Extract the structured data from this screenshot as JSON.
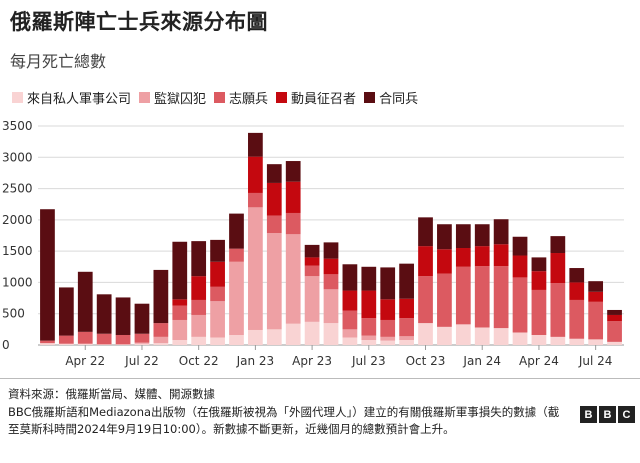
{
  "title": "俄羅斯陣亡士兵來源分布圖",
  "subtitle": "每月死亡總數",
  "legend": [
    {
      "name": "來自私人軍事公司",
      "color": "#f9d3d3"
    },
    {
      "name": "監獄囚犯",
      "color": "#eea0a4"
    },
    {
      "name": "志願兵",
      "color": "#dc5a61"
    },
    {
      "name": "動員征召者",
      "color": "#c4080f"
    },
    {
      "name": "合同兵",
      "color": "#5a0d12"
    }
  ],
  "chart_data": {
    "type": "bar",
    "stacked": true,
    "grid": true,
    "ylim": [
      0,
      3500
    ],
    "yticks": [
      0,
      500,
      1000,
      1500,
      2000,
      2500,
      3000,
      3500
    ],
    "categories": [
      "2022-02",
      "2022-03",
      "2022-04",
      "2022-05",
      "2022-06",
      "2022-07",
      "2022-08",
      "2022-09",
      "2022-10",
      "2022-11",
      "2022-12",
      "2023-01",
      "2023-02",
      "2023-03",
      "2023-04",
      "2023-05",
      "2023-06",
      "2023-07",
      "2023-08",
      "2023-09",
      "2023-10",
      "2023-11",
      "2023-12",
      "2024-01",
      "2024-02",
      "2024-03",
      "2024-04",
      "2024-05",
      "2024-06",
      "2024-07",
      "2024-08"
    ],
    "xtick_labels": [
      {
        "index": 2,
        "label": "Apr 22"
      },
      {
        "index": 5,
        "label": "Jul 22"
      },
      {
        "index": 8,
        "label": "Oct 22"
      },
      {
        "index": 11,
        "label": "Jan 23"
      },
      {
        "index": 14,
        "label": "Apr 23"
      },
      {
        "index": 17,
        "label": "Jul 23"
      },
      {
        "index": 20,
        "label": "Oct 23"
      },
      {
        "index": 23,
        "label": "Jan 24"
      },
      {
        "index": 26,
        "label": "Apr 24"
      },
      {
        "index": 29,
        "label": "Jul 24"
      }
    ],
    "series": [
      {
        "name": "來自私人軍事公司",
        "color": "#f9d3d3",
        "values": [
          30,
          20,
          20,
          10,
          10,
          20,
          30,
          80,
          130,
          120,
          160,
          240,
          250,
          340,
          370,
          350,
          120,
          80,
          70,
          80,
          350,
          290,
          330,
          280,
          270,
          200,
          160,
          130,
          100,
          90,
          50
        ]
      },
      {
        "name": "監獄囚犯",
        "color": "#eea0a4",
        "values": [
          0,
          0,
          0,
          0,
          0,
          20,
          100,
          320,
          350,
          580,
          1170,
          1960,
          1540,
          1430,
          730,
          540,
          130,
          70,
          60,
          60,
          0,
          0,
          0,
          0,
          0,
          0,
          0,
          0,
          0,
          0,
          0
        ]
      },
      {
        "name": "志願兵",
        "color": "#dc5a61",
        "values": [
          40,
          130,
          190,
          170,
          150,
          140,
          220,
          230,
          240,
          230,
          210,
          230,
          280,
          340,
          170,
          240,
          300,
          280,
          270,
          290,
          750,
          850,
          920,
          980,
          990,
          880,
          720,
          860,
          620,
          600,
          330
        ]
      },
      {
        "name": "動員征召者",
        "color": "#c4080f",
        "values": [
          0,
          0,
          0,
          0,
          0,
          0,
          0,
          100,
          380,
          400,
          0,
          580,
          520,
          500,
          130,
          250,
          320,
          440,
          330,
          310,
          480,
          390,
          300,
          320,
          350,
          350,
          300,
          480,
          280,
          160,
          100
        ]
      },
      {
        "name": "合同兵",
        "color": "#5a0d12",
        "values": [
          2100,
          770,
          960,
          630,
          600,
          480,
          850,
          920,
          560,
          350,
          560,
          380,
          300,
          330,
          200,
          260,
          420,
          380,
          510,
          560,
          460,
          400,
          380,
          350,
          400,
          300,
          220,
          270,
          230,
          170,
          80
        ]
      }
    ]
  },
  "footer": {
    "source": "資料來源：俄羅斯當局、媒體、開源數據",
    "note": "BBC俄羅斯語和Mediazona出版物（在俄羅斯被視為「外國代理人」）建立的有關俄羅斯軍事損失的數據（截至莫斯科時間2024年9月19日10:00）。新數據不斷更新，近幾個月的總數預計會上升。",
    "logo_letters": [
      "B",
      "B",
      "C"
    ]
  }
}
